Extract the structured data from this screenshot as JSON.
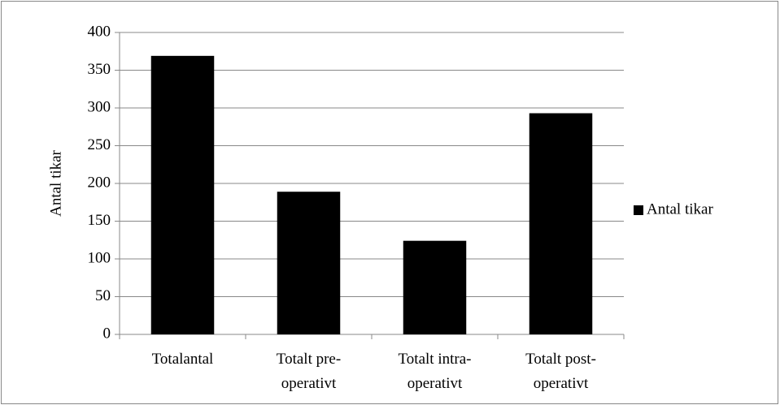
{
  "chart_data": {
    "type": "bar",
    "y_label": "Antal tikar",
    "categories": [
      "Totalantal",
      "Totalt pre-operativt",
      "Totalt intra-operativt",
      "Totalt post-operativt"
    ],
    "series": [
      {
        "name": "Antal tikar",
        "color": "#000000",
        "values": [
          369,
          189,
          124,
          293
        ]
      }
    ],
    "ylim": [
      0,
      400
    ],
    "yticks": [
      0,
      50,
      100,
      150,
      200,
      250,
      300,
      350,
      400
    ],
    "grid": true,
    "legend": "right"
  }
}
